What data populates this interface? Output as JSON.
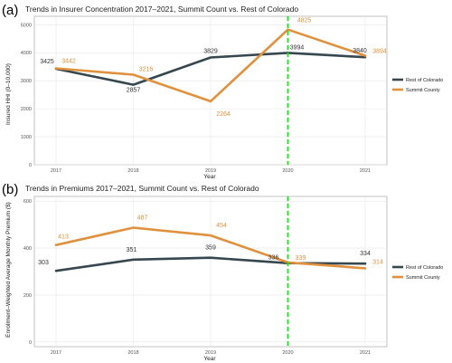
{
  "colors": {
    "rest": "#37474F",
    "summit": "#E0913E",
    "vline": "#22DD22",
    "grid": "#E6E6E6",
    "panel_border": "#9A9A9A"
  },
  "chart_data": [
    {
      "type": "line",
      "panel_label": "(a)",
      "title": "Trends in Insurer Concentration 2017–2021, Summit Count vs. Rest of Colorado",
      "xlabel": "Year",
      "ylabel": "Insured HHI (0–10,000)",
      "categories": [
        "2017",
        "2018",
        "2019",
        "2020",
        "2021"
      ],
      "yticks": [
        "0",
        "1000",
        "2000",
        "3000",
        "4000",
        "5000"
      ],
      "ylim": [
        0,
        5300
      ],
      "vline_at": "2020",
      "legend_position": "right",
      "grid": true,
      "series": [
        {
          "name": "Rest of Colorado",
          "color": "#37474F",
          "values": [
            3425,
            2857,
            3829,
            3994,
            3840
          ],
          "labels": [
            "3425",
            "2857",
            "3829",
            "3994",
            "3840"
          ]
        },
        {
          "name": "Summit County",
          "color": "#E0913E",
          "values": [
            3442,
            3216,
            2264,
            4825,
            3894
          ],
          "labels": [
            "3442",
            "3216",
            "2264",
            "4825",
            "3894"
          ]
        }
      ]
    },
    {
      "type": "line",
      "panel_label": "(b)",
      "title": "Trends in Premiums 2017–2021, Summit Count vs. Rest of Colorado",
      "xlabel": "Year",
      "ylabel": "Enrollment–Weighted Average Monthly Premium ($)",
      "categories": [
        "2017",
        "2018",
        "2019",
        "2020",
        "2021"
      ],
      "yticks": [
        "0",
        "200",
        "400",
        "600"
      ],
      "ylim": [
        -20,
        620
      ],
      "vline_at": "2020",
      "legend_position": "right",
      "grid": true,
      "series": [
        {
          "name": "Rest of Colorado",
          "color": "#37474F",
          "values": [
            303,
            351,
            359,
            336,
            334
          ],
          "labels": [
            "303",
            "351",
            "359",
            "336",
            "334"
          ]
        },
        {
          "name": "Summit County",
          "color": "#E0913E",
          "values": [
            413,
            487,
            454,
            339,
            314
          ],
          "labels": [
            "413",
            "487",
            "454",
            "339",
            "314"
          ]
        }
      ]
    }
  ]
}
